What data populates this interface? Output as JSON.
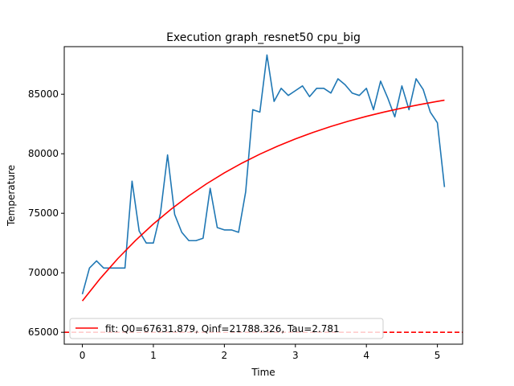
{
  "chart_data": {
    "type": "line",
    "title": "Execution graph_resnet50 cpu_big",
    "xlabel": "Time",
    "ylabel": "Temperature",
    "xlim": [
      -0.255,
      5.355
    ],
    "ylim": [
      64000,
      89000
    ],
    "xticks": [
      0,
      1,
      2,
      3,
      4,
      5
    ],
    "xtick_labels": [
      "0",
      "1",
      "2",
      "3",
      "4",
      "5"
    ],
    "yticks": [
      65000,
      70000,
      75000,
      80000,
      85000
    ],
    "ytick_labels": [
      "65000",
      "70000",
      "75000",
      "80000",
      "85000"
    ],
    "grid": false,
    "legend": {
      "position": "lower-left",
      "entries": [
        "fit: Q0=67631.879, Qinf=21788.326, Tau=2.781"
      ]
    },
    "series": [
      {
        "color": "#1f77b4",
        "style": "solid",
        "x": [
          0.0,
          0.1,
          0.2,
          0.3,
          0.4,
          0.5,
          0.6,
          0.7,
          0.8,
          0.9,
          1.0,
          1.1,
          1.2,
          1.3,
          1.4,
          1.5,
          1.6,
          1.7,
          1.8,
          1.9,
          2.0,
          2.1,
          2.2,
          2.3,
          2.4,
          2.5,
          2.6,
          2.7,
          2.8,
          2.9,
          3.0,
          3.1,
          3.2,
          3.3,
          3.4,
          3.5,
          3.6,
          3.7,
          3.8,
          3.9,
          4.0,
          4.1,
          4.2,
          4.3,
          4.4,
          4.5,
          4.6,
          4.7,
          4.8,
          4.9,
          5.0,
          5.1
        ],
        "values": [
          68200,
          70400,
          71000,
          70400,
          70400,
          70400,
          70400,
          77700,
          73500,
          72500,
          72500,
          75000,
          79900,
          74900,
          73400,
          72700,
          72700,
          72900,
          77100,
          73800,
          73600,
          73600,
          73400,
          76800,
          83700,
          83500,
          88300,
          84400,
          85500,
          84900,
          85300,
          85700,
          84800,
          85500,
          85500,
          85100,
          86300,
          85800,
          85100,
          84900,
          85500,
          83700,
          86100,
          84700,
          83100,
          85700,
          83700,
          86300,
          85400,
          83500,
          82600,
          77200
        ]
      },
      {
        "name": "fit: Q0=67631.879, Qinf=21788.326, Tau=2.781",
        "color": "#ff0000",
        "style": "solid",
        "x": [
          0.0,
          0.25,
          0.5,
          0.75,
          1.0,
          1.25,
          1.5,
          1.75,
          2.0,
          2.25,
          2.5,
          2.75,
          3.0,
          3.25,
          3.5,
          3.75,
          4.0,
          4.25,
          4.5,
          4.75,
          5.0,
          5.1
        ],
        "values": [
          67632,
          69505,
          71196,
          72722,
          74100,
          75344,
          76467,
          77480,
          78395,
          79221,
          79967,
          80640,
          81248,
          81797,
          82292,
          82739,
          83143,
          83507,
          83836,
          84133,
          84401,
          84500
        ]
      },
      {
        "color": "#ff0000",
        "style": "dashed",
        "x": [
          -0.255,
          5.355
        ],
        "values": [
          65000,
          65000
        ]
      }
    ]
  }
}
